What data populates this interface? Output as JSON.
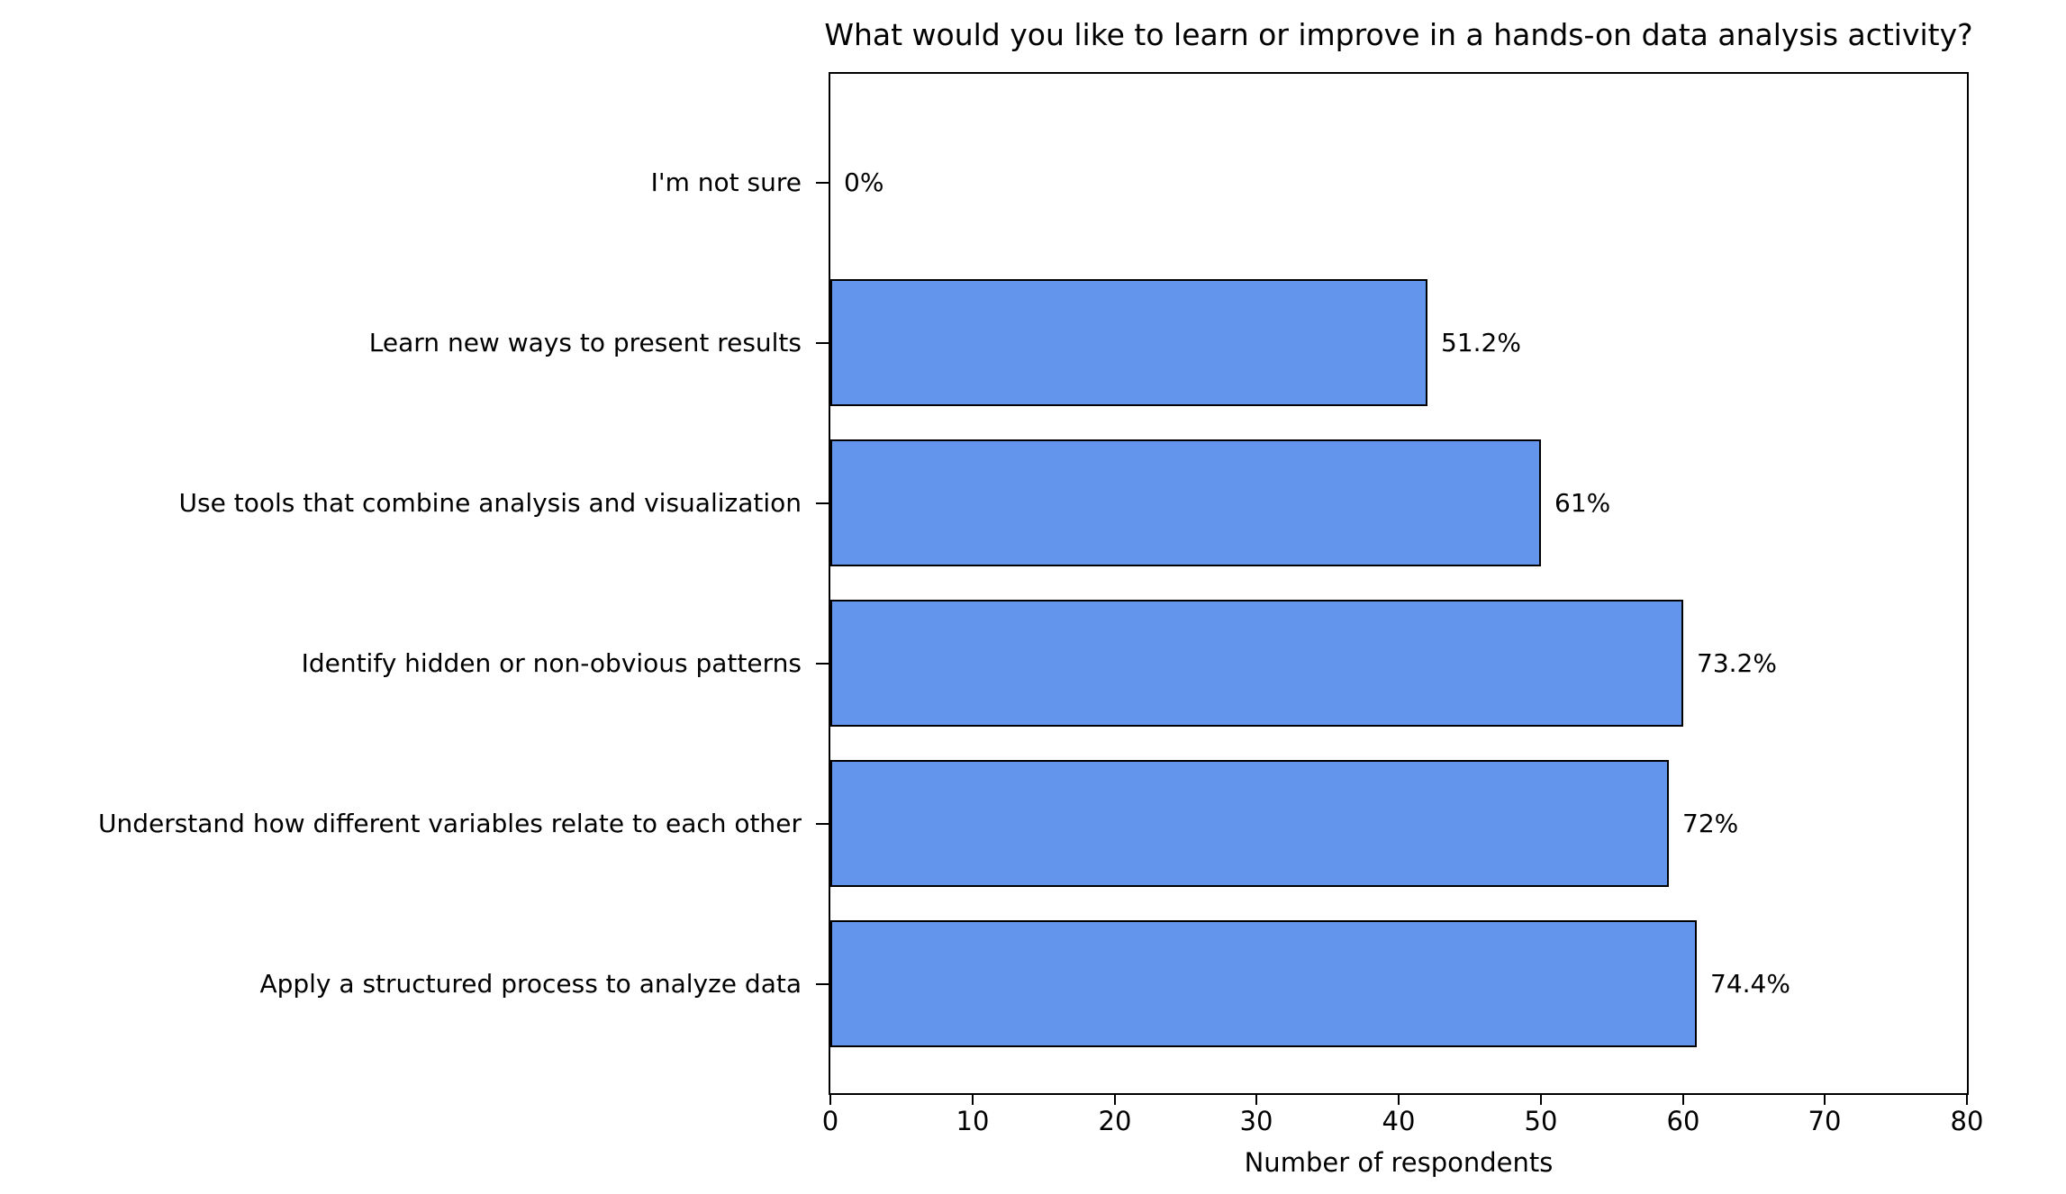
{
  "chart_data": {
    "type": "bar",
    "orientation": "horizontal",
    "title": "What would you like to learn or improve in a hands-on data analysis activity?",
    "xlabel": "Number of respondents",
    "ylabel": "",
    "xlim": [
      0,
      80
    ],
    "xticks": [
      0,
      10,
      20,
      30,
      40,
      50,
      60,
      70,
      80
    ],
    "grid": false,
    "legend": "none",
    "bar_color": "#6495ed",
    "bar_edge_color": "#000000",
    "categories_top_to_bottom": [
      "I'm not sure",
      "Learn new ways to present results",
      "Use tools that combine analysis and visualization",
      "Identify hidden or non-obvious patterns",
      "Understand how different variables relate to each other",
      "Apply a structured process to analyze data"
    ],
    "values": [
      0,
      42,
      50,
      60,
      59,
      61
    ],
    "value_labels": [
      "0%",
      "51.2%",
      "61%",
      "73.2%",
      "72%",
      "74.4%"
    ]
  }
}
